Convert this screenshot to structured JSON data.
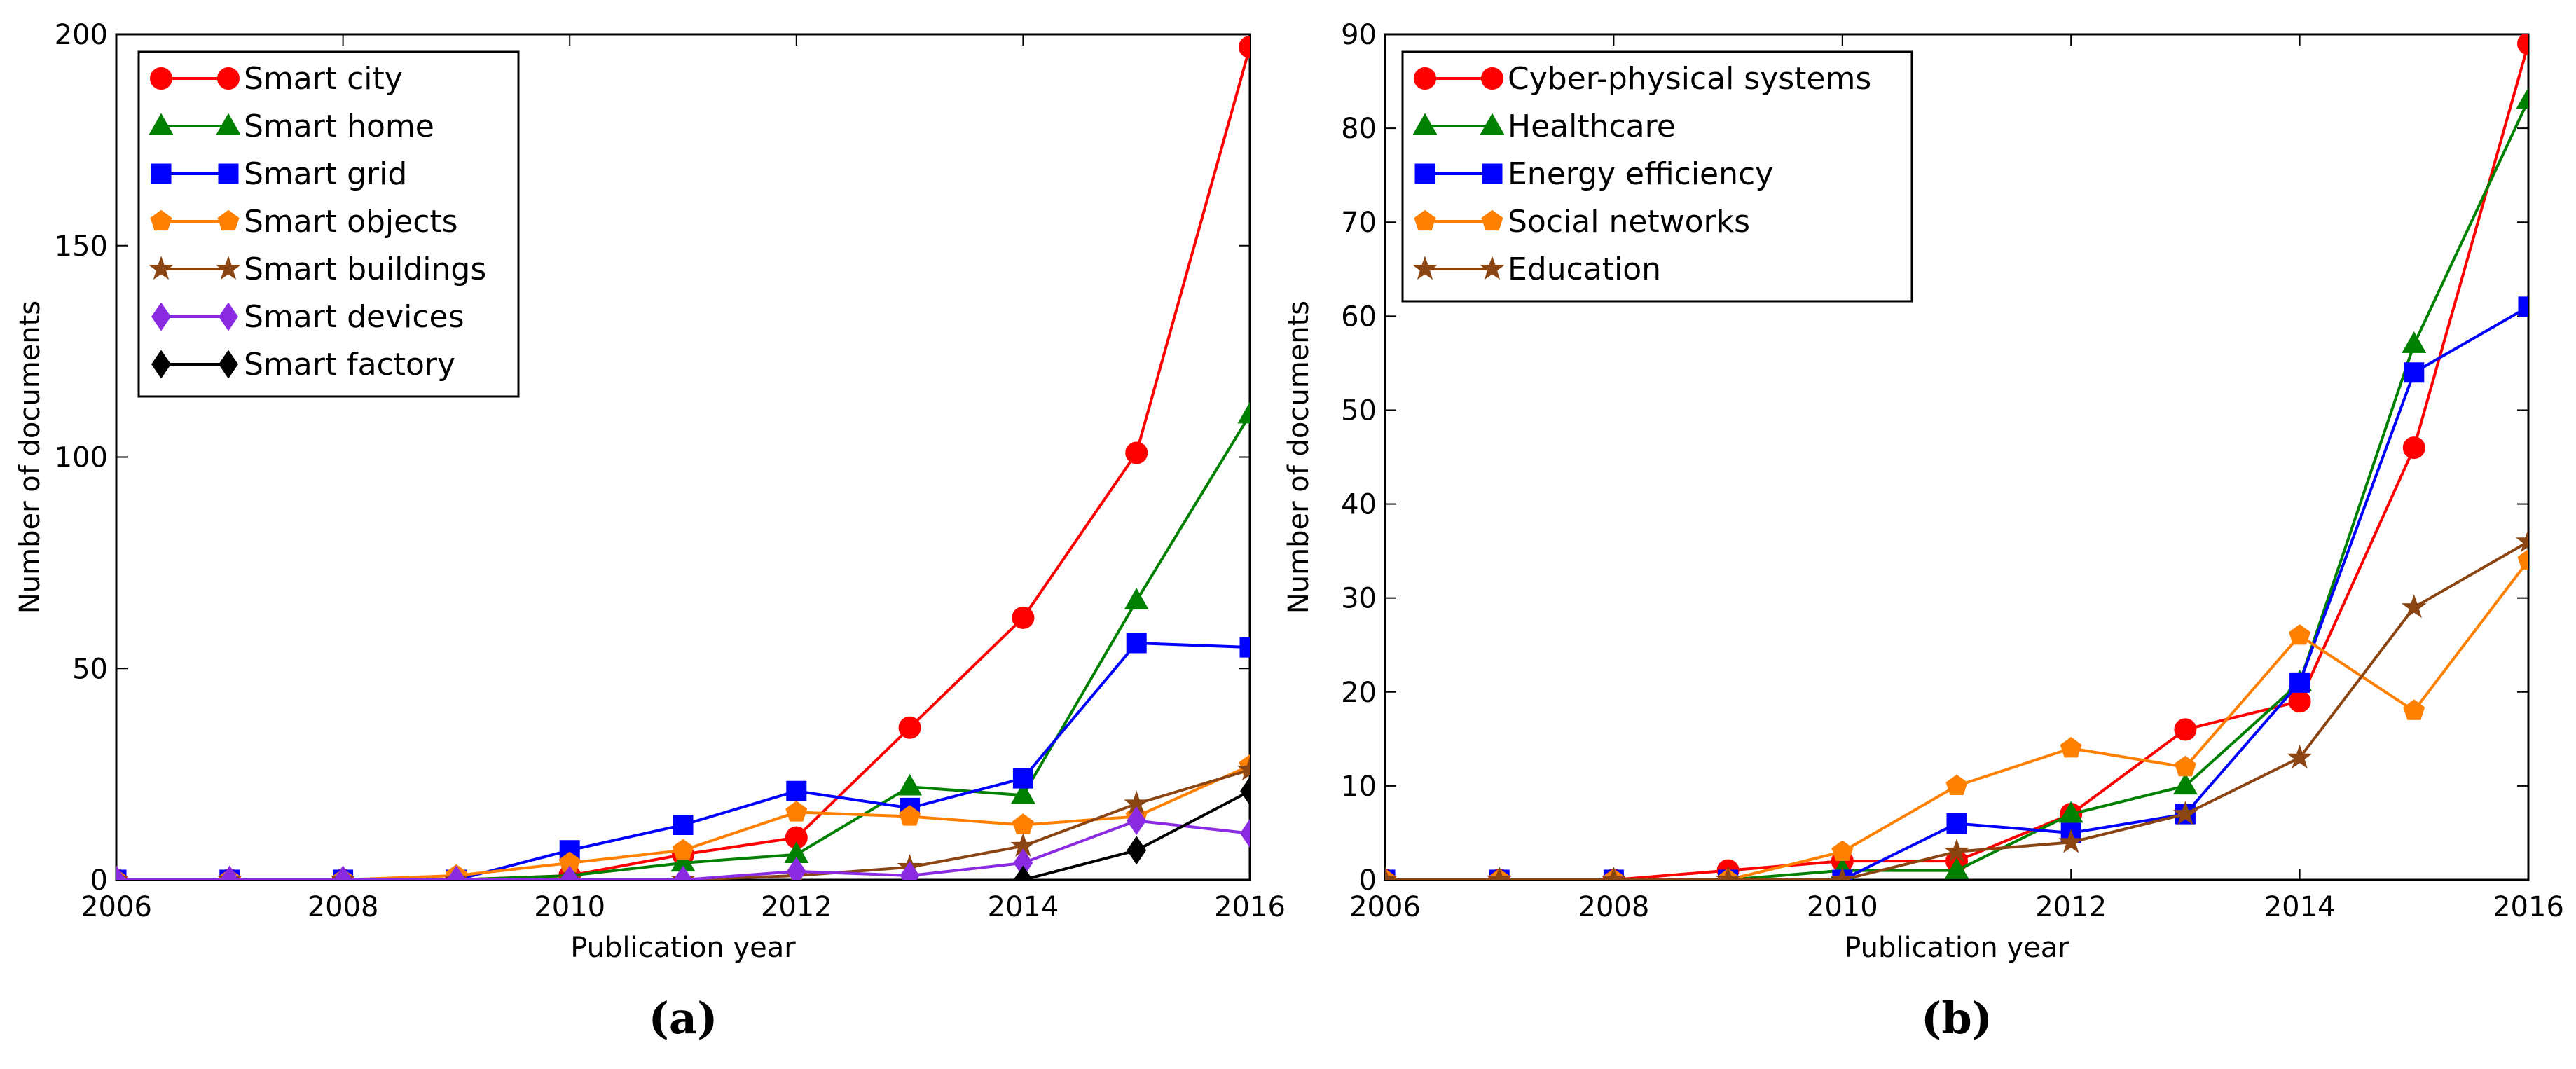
{
  "chart_data": [
    {
      "type": "line",
      "caption": "(a)",
      "xlabel": "Publication year",
      "ylabel": "Number of documents",
      "xlim": [
        2006,
        2016
      ],
      "ylim": [
        0,
        200
      ],
      "xticks": [
        2006,
        2008,
        2010,
        2012,
        2014,
        2016
      ],
      "yticks": [
        0,
        50,
        100,
        150,
        200
      ],
      "legend_position": "top-left",
      "x": [
        2006,
        2007,
        2008,
        2009,
        2010,
        2011,
        2012,
        2013,
        2014,
        2015,
        2016
      ],
      "series": [
        {
          "name": "Smart city",
          "color": "#ff0000",
          "marker": "circle",
          "values": [
            0,
            0,
            0,
            0,
            1,
            6,
            10,
            36,
            62,
            101,
            197
          ]
        },
        {
          "name": "Smart home",
          "color": "#008000",
          "marker": "triangle",
          "values": [
            0,
            0,
            0,
            0,
            1,
            4,
            6,
            22,
            20,
            66,
            110
          ]
        },
        {
          "name": "Smart grid",
          "color": "#0000ff",
          "marker": "square",
          "values": [
            0,
            0,
            0,
            0,
            7,
            13,
            21,
            17,
            24,
            56,
            55
          ]
        },
        {
          "name": "Smart objects",
          "color": "#ff8000",
          "marker": "pentagon",
          "values": [
            0,
            0,
            0,
            1,
            4,
            7,
            16,
            15,
            13,
            15,
            27
          ]
        },
        {
          "name": "Smart buildings",
          "color": "#8b4513",
          "marker": "star",
          "values": [
            0,
            0,
            0,
            0,
            0,
            0,
            1,
            3,
            8,
            18,
            26
          ]
        },
        {
          "name": "Smart devices",
          "color": "#8a2be2",
          "marker": "diamond",
          "values": [
            0,
            0,
            0,
            0,
            0,
            0,
            2,
            1,
            4,
            14,
            11
          ]
        },
        {
          "name": "Smart factory",
          "color": "#000000",
          "marker": "diamond",
          "values": [
            null,
            null,
            null,
            null,
            null,
            null,
            null,
            null,
            0,
            7,
            21
          ]
        }
      ]
    },
    {
      "type": "line",
      "caption": "(b)",
      "xlabel": "Publication year",
      "ylabel": "Number of documents",
      "xlim": [
        2006,
        2016
      ],
      "ylim": [
        0,
        90
      ],
      "xticks": [
        2006,
        2008,
        2010,
        2012,
        2014,
        2016
      ],
      "yticks": [
        0,
        10,
        20,
        30,
        40,
        50,
        60,
        70,
        80,
        90
      ],
      "legend_position": "top-left",
      "x": [
        2006,
        2007,
        2008,
        2009,
        2010,
        2011,
        2012,
        2013,
        2014,
        2015,
        2016
      ],
      "series": [
        {
          "name": "Cyber-physical systems",
          "color": "#ff0000",
          "marker": "circle",
          "values": [
            0,
            0,
            0,
            1,
            2,
            2,
            7,
            16,
            19,
            46,
            89
          ]
        },
        {
          "name": "Healthcare",
          "color": "#008000",
          "marker": "triangle",
          "values": [
            0,
            0,
            0,
            0,
            1,
            1,
            7,
            10,
            21,
            57,
            83
          ]
        },
        {
          "name": "Energy efficiency",
          "color": "#0000ff",
          "marker": "square",
          "values": [
            0,
            0,
            0,
            0,
            0,
            6,
            5,
            7,
            21,
            54,
            61
          ]
        },
        {
          "name": "Social networks",
          "color": "#ff8000",
          "marker": "pentagon",
          "values": [
            0,
            0,
            0,
            0,
            3,
            10,
            14,
            12,
            26,
            18,
            34
          ]
        },
        {
          "name": "Education",
          "color": "#8b4513",
          "marker": "star",
          "values": [
            0,
            0,
            0,
            0,
            0,
            3,
            4,
            7,
            13,
            29,
            36
          ]
        }
      ]
    }
  ]
}
